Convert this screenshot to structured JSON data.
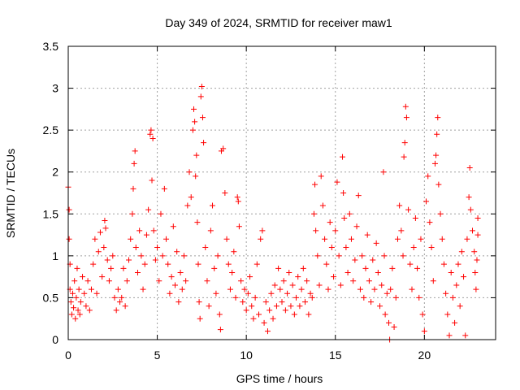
{
  "chart_data": {
    "type": "scatter",
    "title": "Day 349 of 2024, SRMTID for receiver maw1",
    "xlabel": "GPS time / hours",
    "ylabel": "SRMTID / TECUs",
    "xlim": [
      0,
      24
    ],
    "ylim": [
      0,
      3.5
    ],
    "x_ticks": [
      0,
      5,
      10,
      15,
      20
    ],
    "x_tick_labels": [
      "0",
      "5",
      "10",
      "15",
      "20"
    ],
    "y_ticks": [
      0,
      0.5,
      1,
      1.5,
      2,
      2.5,
      3,
      3.5
    ],
    "y_tick_labels": [
      "0",
      "0.5",
      "1",
      "1.5",
      "2",
      "2.5",
      "3",
      "3.5"
    ],
    "grid": true,
    "marker": "+",
    "colors": {
      "series": "#ff0000",
      "grid": "#a0a0a0",
      "axis": "#000000"
    },
    "series": [
      {
        "name": "maw1",
        "points": [
          [
            0.0,
            1.82
          ],
          [
            0.05,
            1.55
          ],
          [
            0.05,
            1.2
          ],
          [
            0.1,
            0.9
          ],
          [
            0.1,
            0.6
          ],
          [
            0.15,
            0.45
          ],
          [
            0.2,
            0.3
          ],
          [
            0.25,
            0.55
          ],
          [
            0.3,
            0.38
          ],
          [
            0.35,
            0.7
          ],
          [
            0.4,
            0.25
          ],
          [
            0.45,
            0.5
          ],
          [
            0.5,
            0.85
          ],
          [
            0.55,
            0.35
          ],
          [
            0.6,
            0.6
          ],
          [
            0.65,
            0.3
          ],
          [
            0.7,
            0.45
          ],
          [
            0.8,
            0.75
          ],
          [
            0.9,
            0.55
          ],
          [
            1.0,
            0.4
          ],
          [
            1.1,
            0.7
          ],
          [
            1.2,
            0.35
          ],
          [
            1.3,
            0.6
          ],
          [
            1.4,
            0.9
          ],
          [
            1.5,
            1.2
          ],
          [
            1.6,
            0.55
          ],
          [
            1.7,
            1.05
          ],
          [
            1.8,
            1.28
          ],
          [
            1.9,
            0.75
          ],
          [
            2.0,
            1.1
          ],
          [
            2.05,
            1.42
          ],
          [
            2.1,
            1.33
          ],
          [
            2.2,
            0.95
          ],
          [
            2.3,
            0.7
          ],
          [
            2.4,
            0.85
          ],
          [
            2.5,
            1.0
          ],
          [
            2.6,
            0.5
          ],
          [
            2.7,
            0.35
          ],
          [
            2.8,
            0.6
          ],
          [
            2.9,
            0.45
          ],
          [
            3.0,
            0.5
          ],
          [
            3.1,
            0.85
          ],
          [
            3.2,
            0.4
          ],
          [
            3.3,
            0.7
          ],
          [
            3.4,
            0.95
          ],
          [
            3.5,
            1.2
          ],
          [
            3.6,
            1.5
          ],
          [
            3.65,
            1.8
          ],
          [
            3.7,
            2.1
          ],
          [
            3.75,
            2.25
          ],
          [
            3.8,
            1.1
          ],
          [
            3.9,
            0.8
          ],
          [
            4.0,
            1.3
          ],
          [
            4.1,
            1.0
          ],
          [
            4.2,
            0.6
          ],
          [
            4.3,
            0.9
          ],
          [
            4.4,
            1.25
          ],
          [
            4.5,
            1.55
          ],
          [
            4.6,
            2.45
          ],
          [
            4.65,
            2.5
          ],
          [
            4.7,
            1.9
          ],
          [
            4.75,
            2.4
          ],
          [
            4.8,
            1.3
          ],
          [
            4.9,
            0.95
          ],
          [
            5.0,
            1.1
          ],
          [
            5.1,
            0.7
          ],
          [
            5.2,
            1.5
          ],
          [
            5.3,
            1.0
          ],
          [
            5.4,
            1.8
          ],
          [
            5.5,
            1.2
          ],
          [
            5.6,
            0.9
          ],
          [
            5.7,
            0.55
          ],
          [
            5.8,
            0.75
          ],
          [
            5.9,
            1.35
          ],
          [
            6.0,
            0.65
          ],
          [
            6.1,
            1.05
          ],
          [
            6.2,
            0.45
          ],
          [
            6.3,
            0.8
          ],
          [
            6.4,
            0.6
          ],
          [
            6.5,
            1.0
          ],
          [
            6.6,
            0.7
          ],
          [
            6.7,
            1.6
          ],
          [
            6.8,
            2.0
          ],
          [
            6.9,
            1.7
          ],
          [
            7.0,
            2.5
          ],
          [
            7.05,
            2.75
          ],
          [
            7.1,
            2.6
          ],
          [
            7.15,
            1.95
          ],
          [
            7.2,
            2.2
          ],
          [
            7.25,
            1.4
          ],
          [
            7.3,
            0.9
          ],
          [
            7.35,
            0.45
          ],
          [
            7.4,
            0.25
          ],
          [
            7.45,
            2.9
          ],
          [
            7.5,
            3.02
          ],
          [
            7.55,
            2.65
          ],
          [
            7.6,
            2.35
          ],
          [
            7.7,
            1.1
          ],
          [
            7.8,
            0.7
          ],
          [
            7.9,
            0.4
          ],
          [
            8.0,
            1.3
          ],
          [
            8.1,
            1.6
          ],
          [
            8.2,
            0.85
          ],
          [
            8.3,
            0.55
          ],
          [
            8.4,
            1.0
          ],
          [
            8.5,
            0.3
          ],
          [
            8.55,
            0.12
          ],
          [
            8.6,
            2.25
          ],
          [
            8.7,
            2.28
          ],
          [
            8.8,
            1.75
          ],
          [
            8.9,
            1.2
          ],
          [
            9.0,
            0.9
          ],
          [
            9.1,
            0.6
          ],
          [
            9.2,
            0.8
          ],
          [
            9.3,
            1.05
          ],
          [
            9.4,
            0.5
          ],
          [
            9.5,
            1.7
          ],
          [
            9.55,
            1.65
          ],
          [
            9.6,
            1.35
          ],
          [
            9.7,
            0.7
          ],
          [
            9.8,
            0.45
          ],
          [
            9.9,
            0.6
          ],
          [
            10.0,
            0.35
          ],
          [
            10.1,
            0.55
          ],
          [
            10.2,
            0.75
          ],
          [
            10.3,
            0.4
          ],
          [
            10.4,
            0.25
          ],
          [
            10.5,
            0.5
          ],
          [
            10.6,
            0.9
          ],
          [
            10.7,
            0.3
          ],
          [
            10.8,
            1.2
          ],
          [
            10.9,
            1.3
          ],
          [
            11.0,
            0.2
          ],
          [
            11.1,
            0.45
          ],
          [
            11.2,
            0.1
          ],
          [
            11.3,
            0.35
          ],
          [
            11.4,
            0.55
          ],
          [
            11.5,
            0.25
          ],
          [
            11.6,
            0.65
          ],
          [
            11.7,
            0.4
          ],
          [
            11.8,
            0.85
          ],
          [
            11.9,
            0.6
          ],
          [
            12.0,
            0.45
          ],
          [
            12.1,
            0.7
          ],
          [
            12.2,
            0.35
          ],
          [
            12.3,
            0.55
          ],
          [
            12.4,
            0.8
          ],
          [
            12.5,
            0.4
          ],
          [
            12.6,
            0.65
          ],
          [
            12.7,
            0.3
          ],
          [
            12.8,
            0.5
          ],
          [
            12.9,
            0.75
          ],
          [
            13.0,
            0.4
          ],
          [
            13.1,
            0.6
          ],
          [
            13.2,
            0.85
          ],
          [
            13.3,
            0.45
          ],
          [
            13.4,
            0.7
          ],
          [
            13.5,
            0.3
          ],
          [
            13.6,
            0.55
          ],
          [
            13.7,
            0.5
          ],
          [
            13.8,
            1.5
          ],
          [
            13.85,
            1.85
          ],
          [
            13.9,
            1.3
          ],
          [
            14.0,
            1.0
          ],
          [
            14.1,
            0.65
          ],
          [
            14.2,
            1.95
          ],
          [
            14.3,
            1.6
          ],
          [
            14.4,
            1.2
          ],
          [
            14.5,
            0.9
          ],
          [
            14.6,
            0.6
          ],
          [
            14.7,
            1.4
          ],
          [
            14.8,
            1.1
          ],
          [
            14.9,
            0.75
          ],
          [
            15.0,
            1.3
          ],
          [
            15.1,
            1.88
          ],
          [
            15.2,
            1.0
          ],
          [
            15.3,
            0.65
          ],
          [
            15.4,
            2.18
          ],
          [
            15.45,
            1.75
          ],
          [
            15.5,
            1.45
          ],
          [
            15.6,
            1.1
          ],
          [
            15.7,
            0.8
          ],
          [
            15.8,
            1.5
          ],
          [
            15.9,
            1.2
          ],
          [
            16.0,
            0.7
          ],
          [
            16.1,
            0.95
          ],
          [
            16.2,
            1.35
          ],
          [
            16.3,
            1.72
          ],
          [
            16.4,
            0.6
          ],
          [
            16.5,
            1.0
          ],
          [
            16.6,
            0.5
          ],
          [
            16.7,
            0.85
          ],
          [
            16.8,
            1.25
          ],
          [
            16.9,
            0.7
          ],
          [
            17.0,
            0.45
          ],
          [
            17.1,
            0.95
          ],
          [
            17.2,
            0.6
          ],
          [
            17.3,
            1.15
          ],
          [
            17.4,
            0.8
          ],
          [
            17.5,
            0.4
          ],
          [
            17.6,
            0.65
          ],
          [
            17.7,
            2.0
          ],
          [
            17.75,
            1.0
          ],
          [
            17.8,
            0.3
          ],
          [
            17.9,
            0.55
          ],
          [
            18.0,
            0.2
          ],
          [
            18.05,
            0.0
          ],
          [
            18.1,
            0.6
          ],
          [
            18.2,
            0.85
          ],
          [
            18.3,
            0.15
          ],
          [
            18.4,
            0.5
          ],
          [
            18.5,
            1.2
          ],
          [
            18.6,
            1.6
          ],
          [
            18.7,
            1.3
          ],
          [
            18.8,
            1.0
          ],
          [
            18.85,
            2.18
          ],
          [
            18.9,
            2.35
          ],
          [
            18.95,
            2.78
          ],
          [
            19.0,
            2.65
          ],
          [
            19.1,
            1.55
          ],
          [
            19.2,
            0.9
          ],
          [
            19.3,
            0.6
          ],
          [
            19.4,
            1.1
          ],
          [
            19.5,
            1.45
          ],
          [
            19.6,
            0.85
          ],
          [
            19.7,
            0.5
          ],
          [
            19.8,
            1.2
          ],
          [
            19.9,
            0.3
          ],
          [
            20.0,
            0.1
          ],
          [
            20.1,
            1.65
          ],
          [
            20.2,
            1.95
          ],
          [
            20.3,
            1.4
          ],
          [
            20.4,
            1.1
          ],
          [
            20.5,
            0.7
          ],
          [
            20.6,
            2.1
          ],
          [
            20.65,
            2.2
          ],
          [
            20.7,
            2.45
          ],
          [
            20.75,
            2.65
          ],
          [
            20.8,
            1.85
          ],
          [
            20.9,
            1.5
          ],
          [
            21.0,
            1.2
          ],
          [
            21.1,
            0.9
          ],
          [
            21.2,
            0.55
          ],
          [
            21.3,
            0.3
          ],
          [
            21.4,
            0.05
          ],
          [
            21.5,
            0.8
          ],
          [
            21.6,
            0.5
          ],
          [
            21.7,
            0.2
          ],
          [
            21.8,
            0.65
          ],
          [
            21.9,
            0.9
          ],
          [
            22.0,
            0.4
          ],
          [
            22.1,
            1.05
          ],
          [
            22.2,
            0.75
          ],
          [
            22.3,
            0.05
          ],
          [
            22.4,
            1.2
          ],
          [
            22.5,
            1.7
          ],
          [
            22.55,
            2.05
          ],
          [
            22.6,
            1.55
          ],
          [
            22.7,
            1.3
          ],
          [
            22.8,
            1.05
          ],
          [
            22.85,
            0.8
          ],
          [
            22.9,
            0.6
          ],
          [
            22.95,
            0.95
          ],
          [
            23.0,
            1.45
          ],
          [
            23.0,
            1.25
          ]
        ]
      }
    ]
  }
}
